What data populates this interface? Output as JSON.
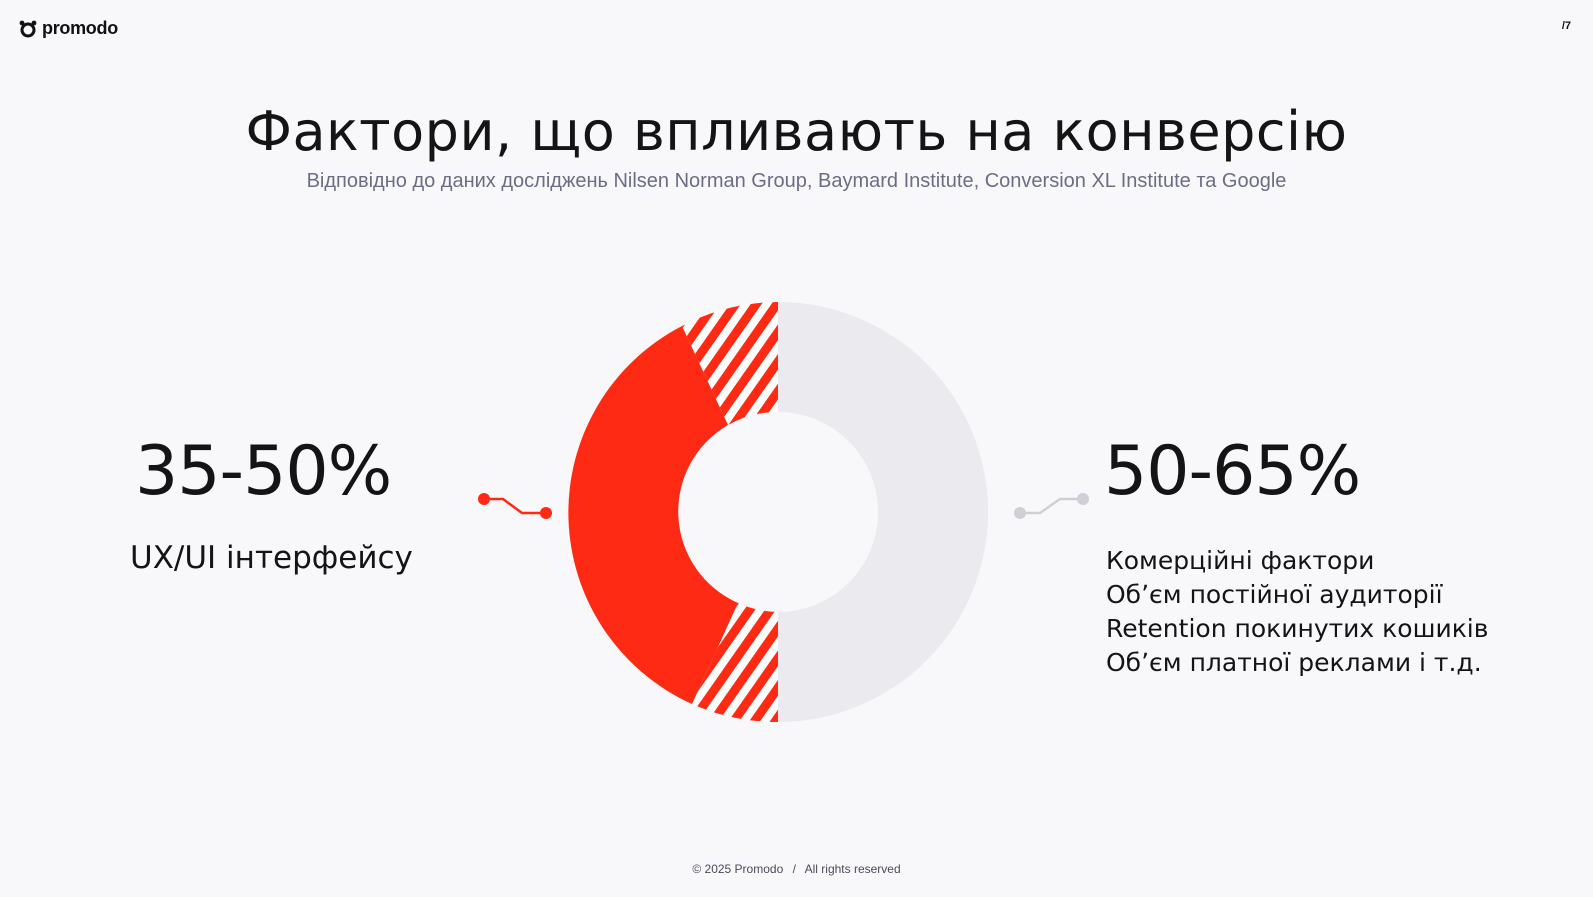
{
  "brand": {
    "logo_text": "promodo",
    "logo_icon": "promodo-mark-icon"
  },
  "page_number": "/7",
  "title": "Фактори, що впливають на конверсію",
  "subtitle": "Відповідно до даних досліджень Nilsen Norman Group, Baymard Institute, Conversion XL Institute та Google",
  "left": {
    "value": "35-50%",
    "label": "UX/UI інтерфейсу"
  },
  "right": {
    "value": "50-65%",
    "factors": [
      "Комерційні фактори",
      "Обʼєм постійної аудиторії",
      "Retention покинутих кошиків",
      "Обʼєм платної реклами і т.д."
    ]
  },
  "footer": {
    "copyright": "© 2025 Promodo",
    "separator": "/",
    "rights": "All rights reserved"
  },
  "colors": {
    "accent": "#ff2a14",
    "muted_ring": "#ebebef",
    "background": "#f8f8fb",
    "connector_left": "#ff2a14",
    "connector_right": "#cfcfd6"
  }
}
